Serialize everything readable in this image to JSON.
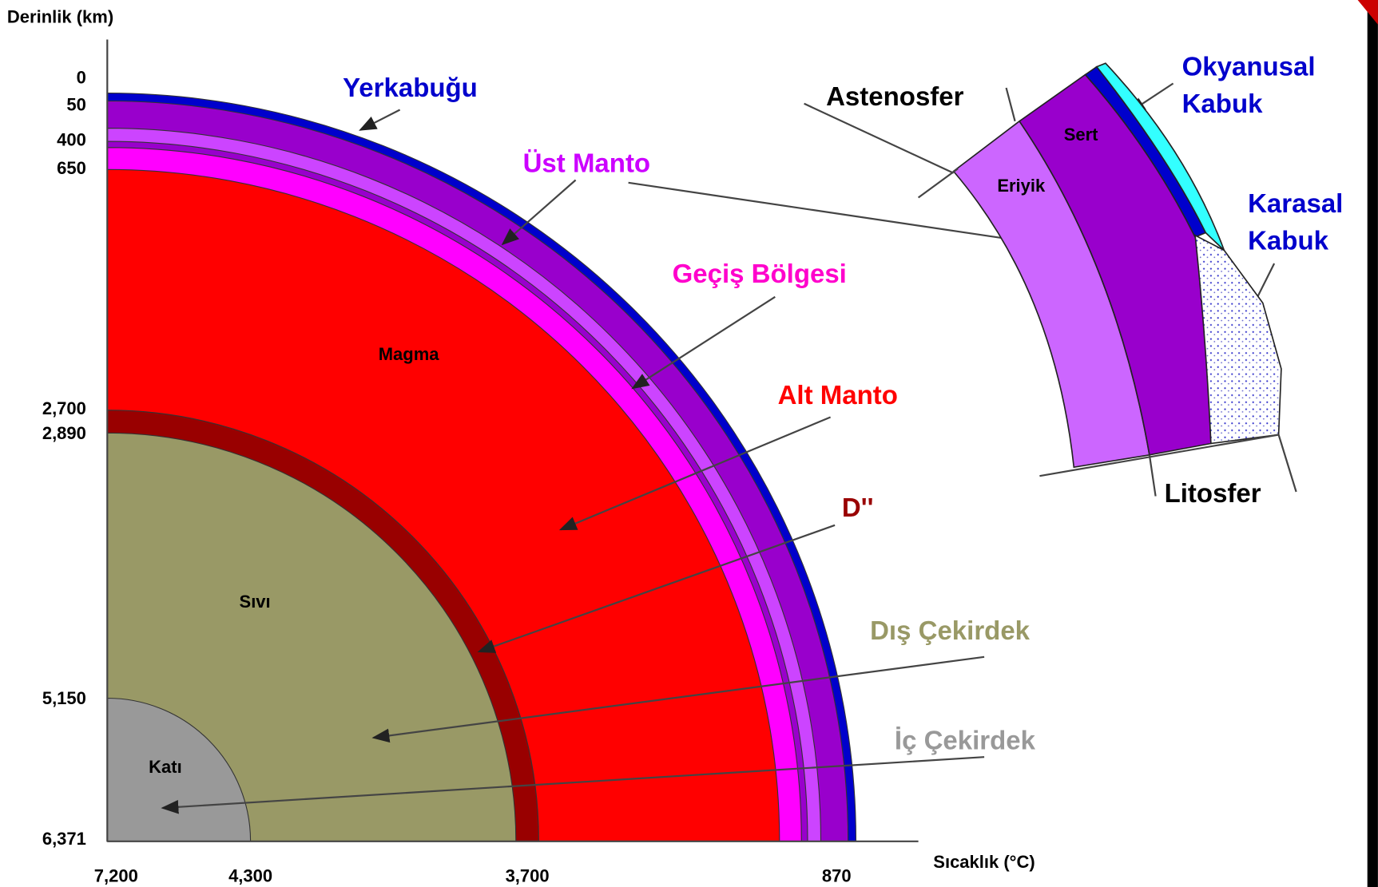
{
  "header": {
    "depth_axis": "Derinlik (km)",
    "temperature_axis": "Sıcaklık (°C)"
  },
  "depth_labels": [
    "0",
    "50",
    "400",
    "650",
    "2,700",
    "2,890",
    "5,150",
    "6,371"
  ],
  "temperature_labels": [
    "7,200",
    "4,300",
    "3,700",
    "870"
  ],
  "layers": {
    "crust": "Yerkabuğu",
    "upper_mantle": "Üst Manto",
    "transition": "Geçiş Bölgesi",
    "lower_mantle": "Alt Manto",
    "d_layer": "D''",
    "outer_core": "Dış Çekirdek",
    "inner_core": "İç Çekirdek"
  },
  "regions": {
    "magma": "Magma",
    "liquid": "Sıvı",
    "solid": "Katı"
  },
  "inset": {
    "asthenosphere": "Astenosfer",
    "oceanic_crust": [
      "Okyanusal",
      "Kabuk"
    ],
    "continental_crust": [
      "Karasal",
      "Kabuk"
    ],
    "lithosphere": "Litosfer",
    "hard": "Sert",
    "molten": "Eriyik"
  }
}
